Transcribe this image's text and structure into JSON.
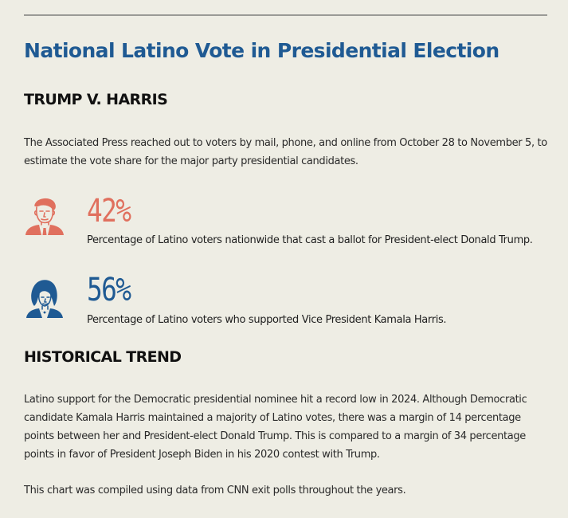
{
  "title": "National Latino Vote in Presidential Election",
  "section1": {
    "heading": "TRUMP V. HARRIS",
    "intro": "The Associated Press reached out to voters by mail, phone, and online from October 28 to November 5, to estimate the vote share for the major party presidential candidates."
  },
  "stats": [
    {
      "icon": "trump-portrait-icon",
      "value": "42%",
      "color": "#e0705e",
      "description": "Percentage of Latino voters nationwide that cast a ballot for President-elect Donald Trump."
    },
    {
      "icon": "harris-portrait-icon",
      "value": "56%",
      "color": "#1f5a93",
      "description": "Percentage of Latino voters who supported Vice President Kamala Harris."
    }
  ],
  "section2": {
    "heading": "HISTORICAL TREND",
    "paragraph1": "Latino support for the Democratic presidential nominee hit a record low in 2024. Although Democratic candidate Kamala Harris maintained a majority of Latino votes, there was a margin of 14 percentage points between her and President-elect Donald Trump. This is compared to a margin of 34 percentage points in favor of President Joseph Biden in his 2020 contest with Trump.",
    "paragraph2": "This chart was compiled using data from CNN exit polls throughout the years."
  },
  "colors": {
    "title": "#1f5a93",
    "republican": "#e0705e",
    "democrat": "#1f5a93",
    "background": "#eeede4"
  }
}
